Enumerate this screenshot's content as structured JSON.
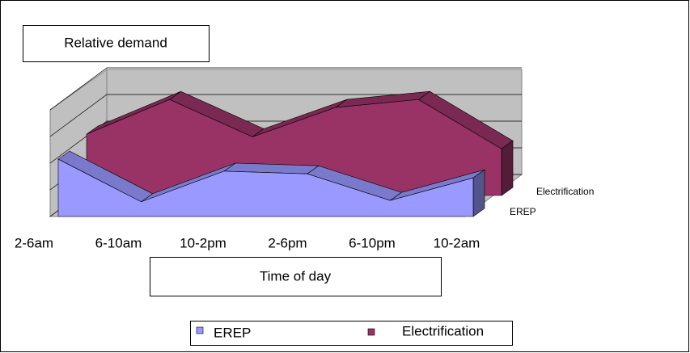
{
  "chart_data": {
    "type": "area3d",
    "title": "Relative demand",
    "x_label": "Time of day",
    "categories": [
      "2-6am",
      "6-10am",
      "10-2pm",
      "2-6pm",
      "6-10pm",
      "10-2am"
    ],
    "series": [
      {
        "name": "EREP",
        "color": "#9999ff",
        "values": [
          2.15,
          0.55,
          1.7,
          1.6,
          0.6,
          1.45
        ]
      },
      {
        "name": "Electrification",
        "color": "#993366",
        "values": [
          2.3,
          3.6,
          2.2,
          3.3,
          3.6,
          1.75
        ]
      }
    ],
    "ylim": [
      0,
      4
    ],
    "yticks": [
      0,
      1,
      2,
      3,
      4
    ],
    "grid": true
  }
}
